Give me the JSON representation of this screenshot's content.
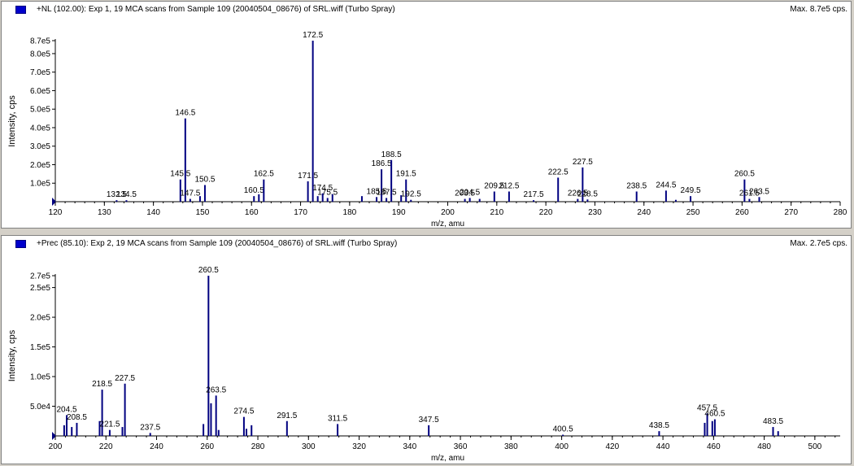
{
  "panels": [
    {
      "title": "+NL (102.00): Exp 1, 19 MCA scans from Sample 109 (20040504_08676) of SRL.wiff (Turbo Spray)",
      "max_label": "Max. 8.7e5 cps.",
      "xlabel": "m/z, amu",
      "ylabel": "Intensity, cps"
    },
    {
      "title": "+Prec (85.10): Exp 2, 19 MCA scans from Sample 109 (20040504_08676) of SRL.wiff (Turbo Spray)",
      "max_label": "Max. 2.7e5 cps.",
      "xlabel": "m/z, amu",
      "ylabel": "Intensity, cps"
    }
  ],
  "chart_data": [
    {
      "type": "bar",
      "title": "+NL (102.00): Exp 1, 19 MCA scans from Sample 109 (20040504_08676) of SRL.wiff (Turbo Spray)",
      "xlabel": "m/z, amu",
      "ylabel": "Intensity, cps",
      "xlim": [
        120,
        280
      ],
      "ylim": [
        0,
        870000
      ],
      "x_ticks": [
        120,
        130,
        140,
        150,
        160,
        170,
        180,
        190,
        200,
        210,
        220,
        230,
        240,
        250,
        260,
        270,
        280
      ],
      "y_ticks": [
        {
          "v": 100000,
          "label": "1.0e5"
        },
        {
          "v": 200000,
          "label": "2.0e5"
        },
        {
          "v": 300000,
          "label": "3.0e5"
        },
        {
          "v": 400000,
          "label": "4.0e5"
        },
        {
          "v": 500000,
          "label": "5.0e5"
        },
        {
          "v": 600000,
          "label": "6.0e5"
        },
        {
          "v": 700000,
          "label": "7.0e5"
        },
        {
          "v": 800000,
          "label": "8.0e5"
        },
        {
          "v": 870000,
          "label": "8.7e5"
        }
      ],
      "color": "#000080",
      "peaks": [
        {
          "x": 132.5,
          "y": 8000,
          "label": "132.5"
        },
        {
          "x": 134.5,
          "y": 8000,
          "label": "134.5"
        },
        {
          "x": 145.5,
          "y": 120000,
          "label": "145.5"
        },
        {
          "x": 146.5,
          "y": 450000,
          "label": "146.5"
        },
        {
          "x": 147.5,
          "y": 15000,
          "label": "147.5"
        },
        {
          "x": 149.5,
          "y": 30000
        },
        {
          "x": 150.5,
          "y": 90000,
          "label": "150.5"
        },
        {
          "x": 160.5,
          "y": 30000,
          "label": "160.5"
        },
        {
          "x": 161.5,
          "y": 40000
        },
        {
          "x": 162.5,
          "y": 120000,
          "label": "162.5"
        },
        {
          "x": 171.5,
          "y": 110000,
          "label": "171.5"
        },
        {
          "x": 172.5,
          "y": 870000,
          "label": "172.5"
        },
        {
          "x": 173.5,
          "y": 30000
        },
        {
          "x": 175.5,
          "y": 20000,
          "label": "175.5"
        },
        {
          "x": 174.5,
          "y": 45000,
          "label": "174.5"
        },
        {
          "x": 176.5,
          "y": 40000
        },
        {
          "x": 182.5,
          "y": 30000
        },
        {
          "x": 185.5,
          "y": 25000,
          "label": "185.5"
        },
        {
          "x": 186.5,
          "y": 175000,
          "label": "186.5"
        },
        {
          "x": 187.5,
          "y": 20000,
          "label": "187.5"
        },
        {
          "x": 188.5,
          "y": 225000,
          "label": "188.5"
        },
        {
          "x": 190.5,
          "y": 35000
        },
        {
          "x": 191.5,
          "y": 120000,
          "label": "191.5"
        },
        {
          "x": 192.5,
          "y": 10000,
          "label": "192.5"
        },
        {
          "x": 203.5,
          "y": 15000,
          "label": "203.5"
        },
        {
          "x": 204.5,
          "y": 20000,
          "label": "204.5"
        },
        {
          "x": 206.5,
          "y": 15000
        },
        {
          "x": 209.5,
          "y": 55000,
          "label": "209.5"
        },
        {
          "x": 212.5,
          "y": 55000,
          "label": "212.5"
        },
        {
          "x": 217.5,
          "y": 8000,
          "label": "217.5"
        },
        {
          "x": 222.5,
          "y": 130000,
          "label": "222.5"
        },
        {
          "x": 226.5,
          "y": 15000,
          "label": "226.5"
        },
        {
          "x": 227.5,
          "y": 185000,
          "label": "227.5"
        },
        {
          "x": 228.5,
          "y": 12000,
          "label": "228.5"
        },
        {
          "x": 238.5,
          "y": 55000,
          "label": "238.5"
        },
        {
          "x": 244.5,
          "y": 60000,
          "label": "244.5"
        },
        {
          "x": 246.5,
          "y": 10000
        },
        {
          "x": 249.5,
          "y": 30000,
          "label": "249.5"
        },
        {
          "x": 260.5,
          "y": 120000,
          "label": "260.5"
        },
        {
          "x": 261.5,
          "y": 15000,
          "label": "261.5"
        },
        {
          "x": 263.5,
          "y": 25000,
          "label": "263.5"
        }
      ]
    },
    {
      "type": "bar",
      "title": "+Prec (85.10): Exp 2, 19 MCA scans from Sample 109 (20040504_08676) of SRL.wiff (Turbo Spray)",
      "xlabel": "m/z, amu",
      "ylabel": "Intensity, cps",
      "xlim": [
        200,
        510
      ],
      "ylim": [
        0,
        270000
      ],
      "x_ticks": [
        200,
        220,
        240,
        260,
        280,
        300,
        320,
        340,
        360,
        380,
        400,
        420,
        440,
        460,
        480,
        500
      ],
      "y_ticks": [
        {
          "v": 50000,
          "label": "5.0e4"
        },
        {
          "v": 100000,
          "label": "1.0e5"
        },
        {
          "v": 150000,
          "label": "1.5e5"
        },
        {
          "v": 200000,
          "label": "2.0e5"
        },
        {
          "v": 250000,
          "label": "2.5e5"
        },
        {
          "v": 270000,
          "label": "2.7e5"
        }
      ],
      "color": "#000080",
      "peaks": [
        {
          "x": 204.5,
          "y": 35000,
          "label": "204.5"
        },
        {
          "x": 203.5,
          "y": 18000
        },
        {
          "x": 206.5,
          "y": 15000
        },
        {
          "x": 208.5,
          "y": 22000,
          "label": "208.5"
        },
        {
          "x": 218.5,
          "y": 78000,
          "label": "218.5"
        },
        {
          "x": 217.5,
          "y": 25000
        },
        {
          "x": 221.5,
          "y": 10000,
          "label": "221.5"
        },
        {
          "x": 227.5,
          "y": 88000,
          "label": "227.5"
        },
        {
          "x": 226.5,
          "y": 15000
        },
        {
          "x": 237.5,
          "y": 5000,
          "label": "237.5"
        },
        {
          "x": 258.5,
          "y": 20000
        },
        {
          "x": 260.5,
          "y": 270000,
          "label": "260.5"
        },
        {
          "x": 261.5,
          "y": 55000
        },
        {
          "x": 263.5,
          "y": 68000,
          "label": "263.5"
        },
        {
          "x": 264.5,
          "y": 10000
        },
        {
          "x": 274.5,
          "y": 32000,
          "label": "274.5"
        },
        {
          "x": 275.5,
          "y": 12000
        },
        {
          "x": 277.5,
          "y": 18000
        },
        {
          "x": 291.5,
          "y": 25000,
          "label": "291.5"
        },
        {
          "x": 311.5,
          "y": 20000,
          "label": "311.5"
        },
        {
          "x": 347.5,
          "y": 18000,
          "label": "347.5"
        },
        {
          "x": 400.5,
          "y": 2000,
          "label": "400.5"
        },
        {
          "x": 438.5,
          "y": 8000,
          "label": "438.5"
        },
        {
          "x": 456.5,
          "y": 22000
        },
        {
          "x": 457.5,
          "y": 38000,
          "label": "457.5"
        },
        {
          "x": 459.5,
          "y": 25000
        },
        {
          "x": 460.5,
          "y": 28000,
          "label": "460.5"
        },
        {
          "x": 483.5,
          "y": 15000,
          "label": "483.5"
        },
        {
          "x": 485.5,
          "y": 8000
        }
      ]
    }
  ]
}
